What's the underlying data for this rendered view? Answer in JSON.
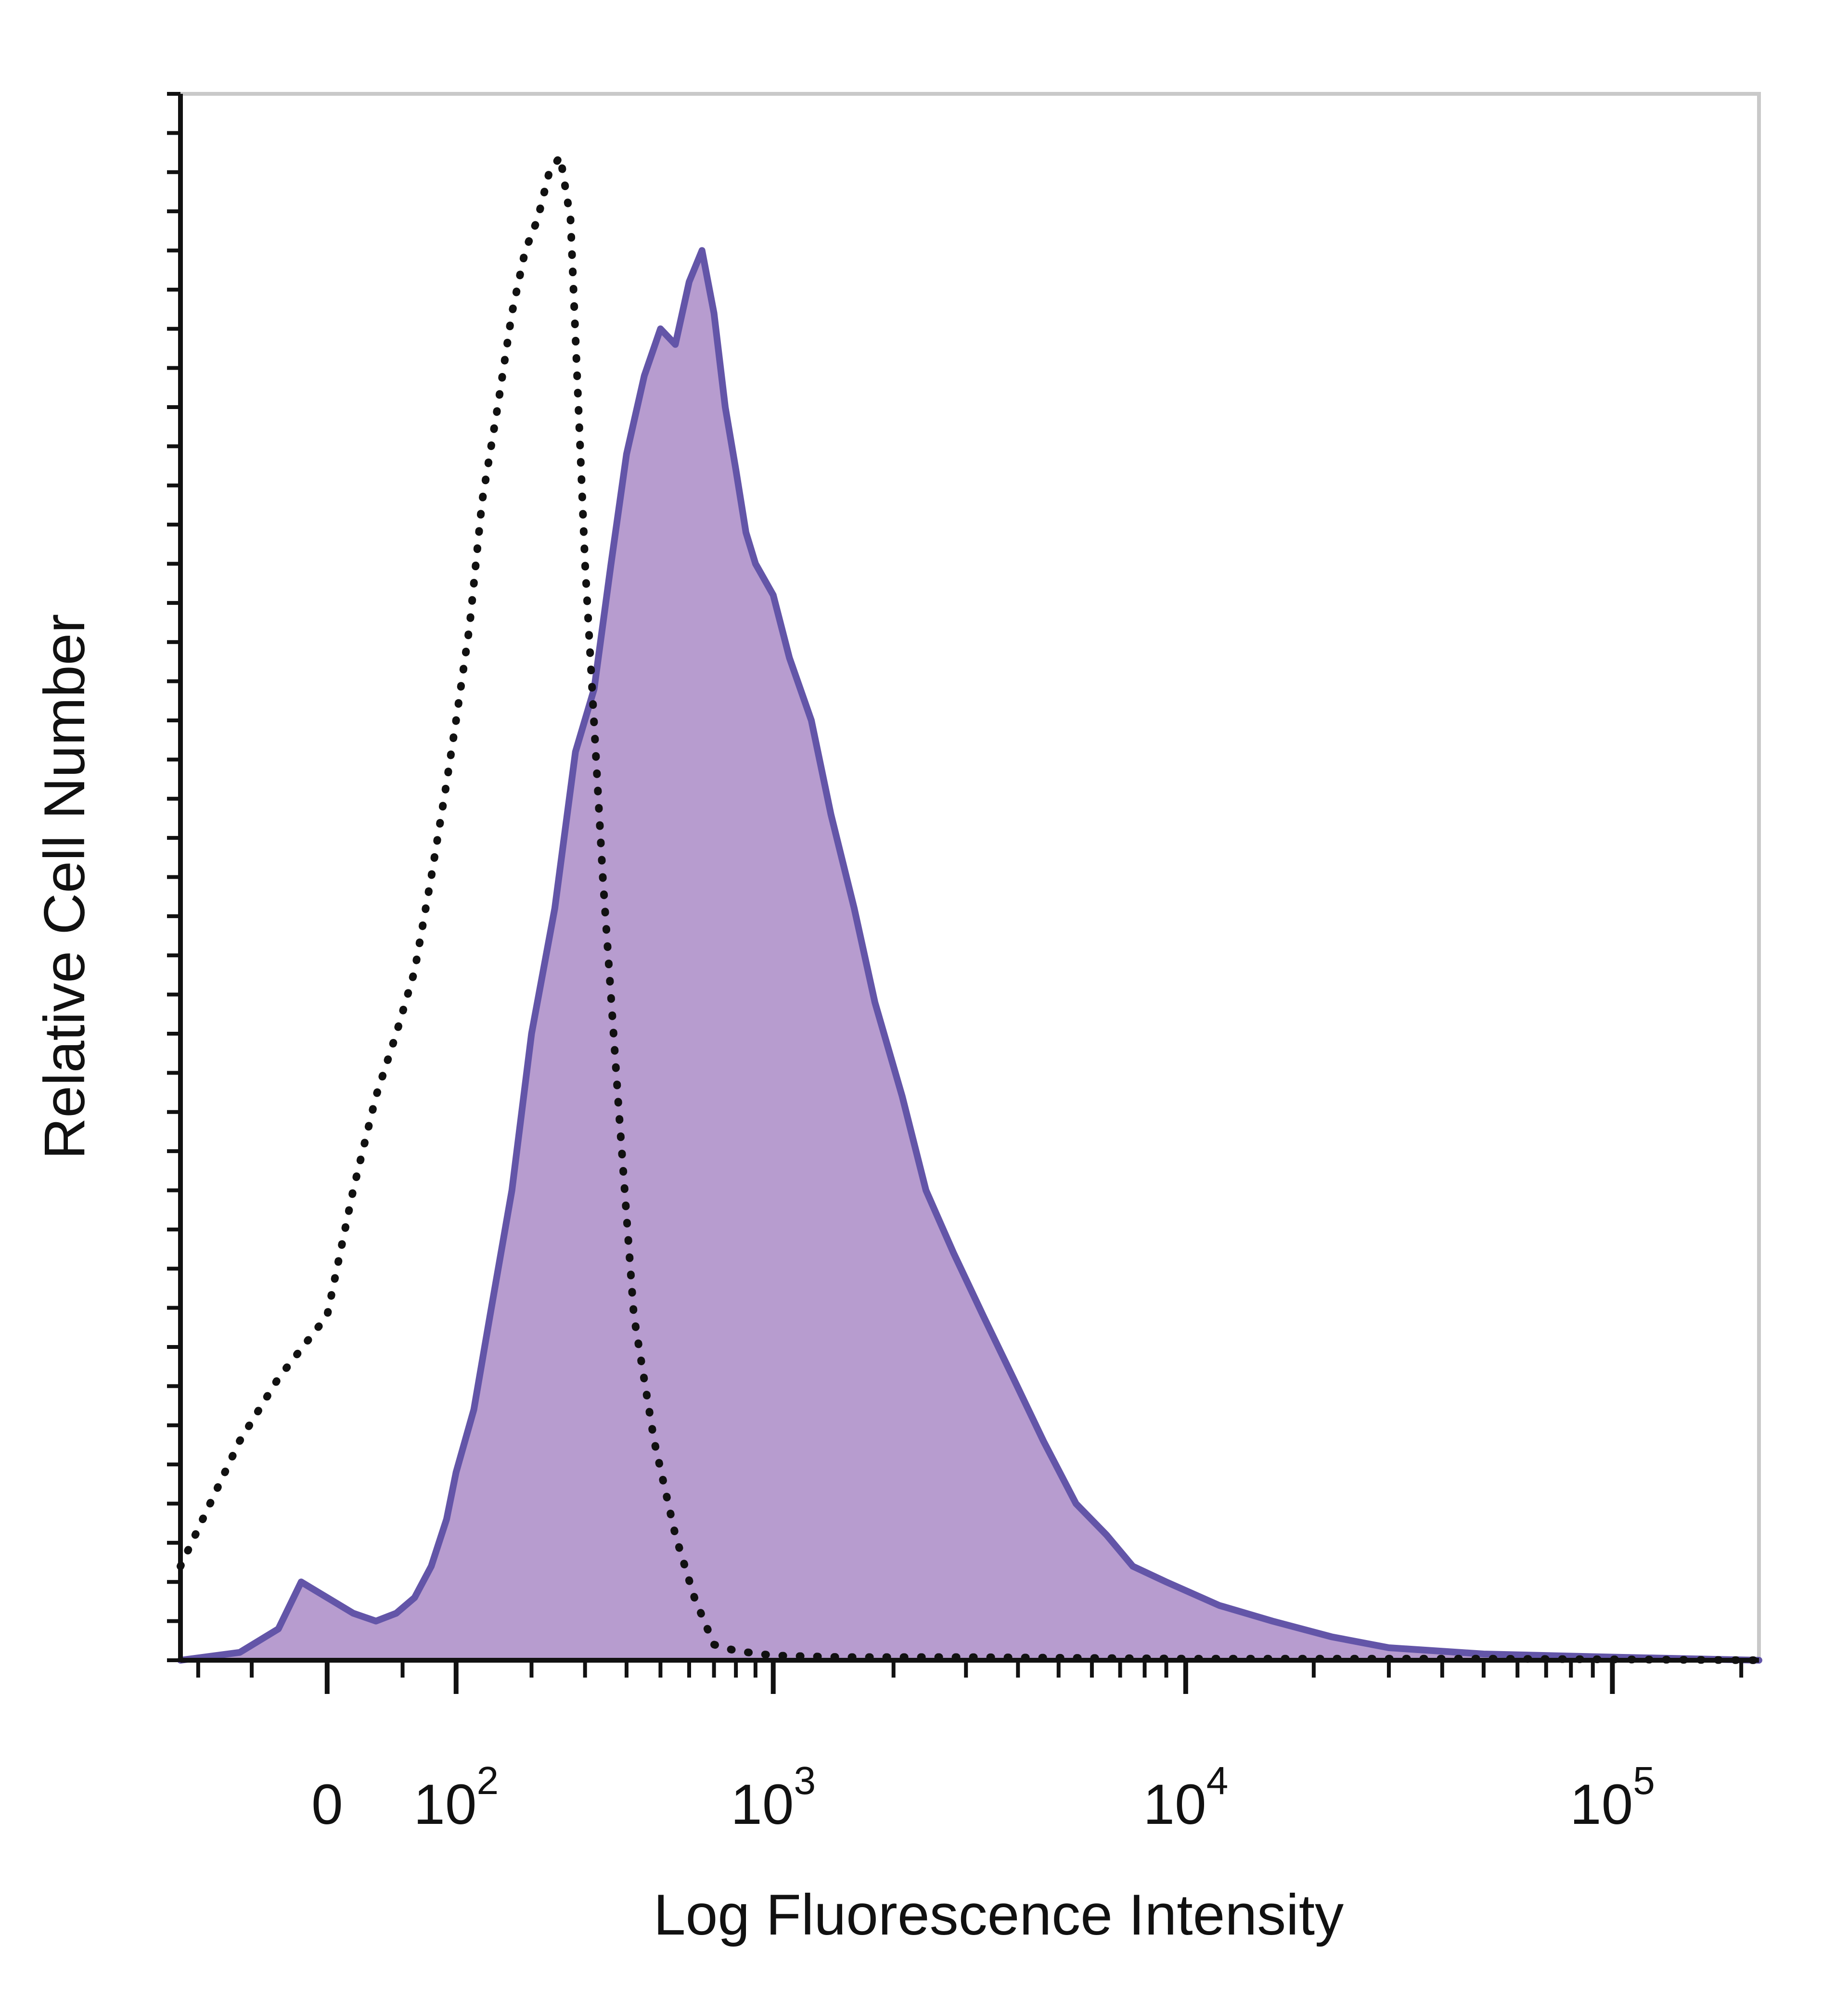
{
  "chart_data": {
    "type": "area",
    "xlabel": "Log Fluorescence Intensity",
    "ylabel": "Relative Cell Number",
    "x_scale": "biexponential",
    "x_ticks": [
      {
        "value": 0,
        "base": "0",
        "exp": ""
      },
      {
        "value": 100,
        "base": "10",
        "exp": "2"
      },
      {
        "value": 1000,
        "base": "10",
        "exp": "3"
      },
      {
        "value": 10000,
        "base": "10",
        "exp": "4"
      },
      {
        "value": 100000,
        "base": "10",
        "exp": "5"
      }
    ],
    "xlim": [
      -120,
      220000
    ],
    "ylim": [
      0,
      100
    ],
    "grid": false,
    "legend": "none",
    "series": [
      {
        "style": "dotted",
        "color": "#111111",
        "fill": "none",
        "x": [
          -120,
          -60,
          -30,
          0,
          15,
          30,
          45,
          60,
          75,
          90,
          100,
          115,
          130,
          150,
          170,
          190,
          210,
          230,
          250,
          270,
          300,
          340,
          380,
          420,
          480,
          550,
          620,
          700,
          800,
          1000,
          1500,
          3000,
          10000,
          50000,
          220000
        ],
        "y": [
          6,
          14,
          18,
          22,
          30,
          36,
          40,
          44,
          50,
          56,
          60,
          66,
          74,
          80,
          86,
          90,
          92,
          95,
          96,
          92,
          70,
          50,
          35,
          22,
          14,
          8,
          4,
          1,
          0.6,
          0.3,
          0.2,
          0.2,
          0.1,
          0.1,
          0
        ]
      },
      {
        "style": "solid",
        "color": "#6355a8",
        "fill": "#b79ccf",
        "x": [
          -120,
          -60,
          -30,
          -15,
          0,
          15,
          30,
          45,
          60,
          75,
          90,
          100,
          120,
          140,
          170,
          200,
          240,
          280,
          320,
          360,
          400,
          450,
          500,
          550,
          600,
          650,
          700,
          750,
          800,
          850,
          900,
          1000,
          1100,
          1250,
          1400,
          1600,
          1800,
          2100,
          2400,
          2800,
          3300,
          3900,
          4600,
          5500,
          6500,
          7500,
          9000,
          12000,
          16000,
          22000,
          30000,
          50000,
          100000,
          220000
        ],
        "y": [
          0,
          0.5,
          2,
          5,
          4,
          3,
          2.5,
          3,
          4,
          6,
          9,
          12,
          16,
          22,
          30,
          40,
          48,
          58,
          62,
          70,
          77,
          82,
          85,
          84,
          88,
          90,
          86,
          80,
          76,
          72,
          70,
          68,
          64,
          60,
          54,
          48,
          42,
          36,
          30,
          26,
          22,
          18,
          14,
          10,
          8,
          6,
          5,
          3.5,
          2.5,
          1.5,
          0.8,
          0.4,
          0.2,
          0
        ]
      }
    ]
  }
}
